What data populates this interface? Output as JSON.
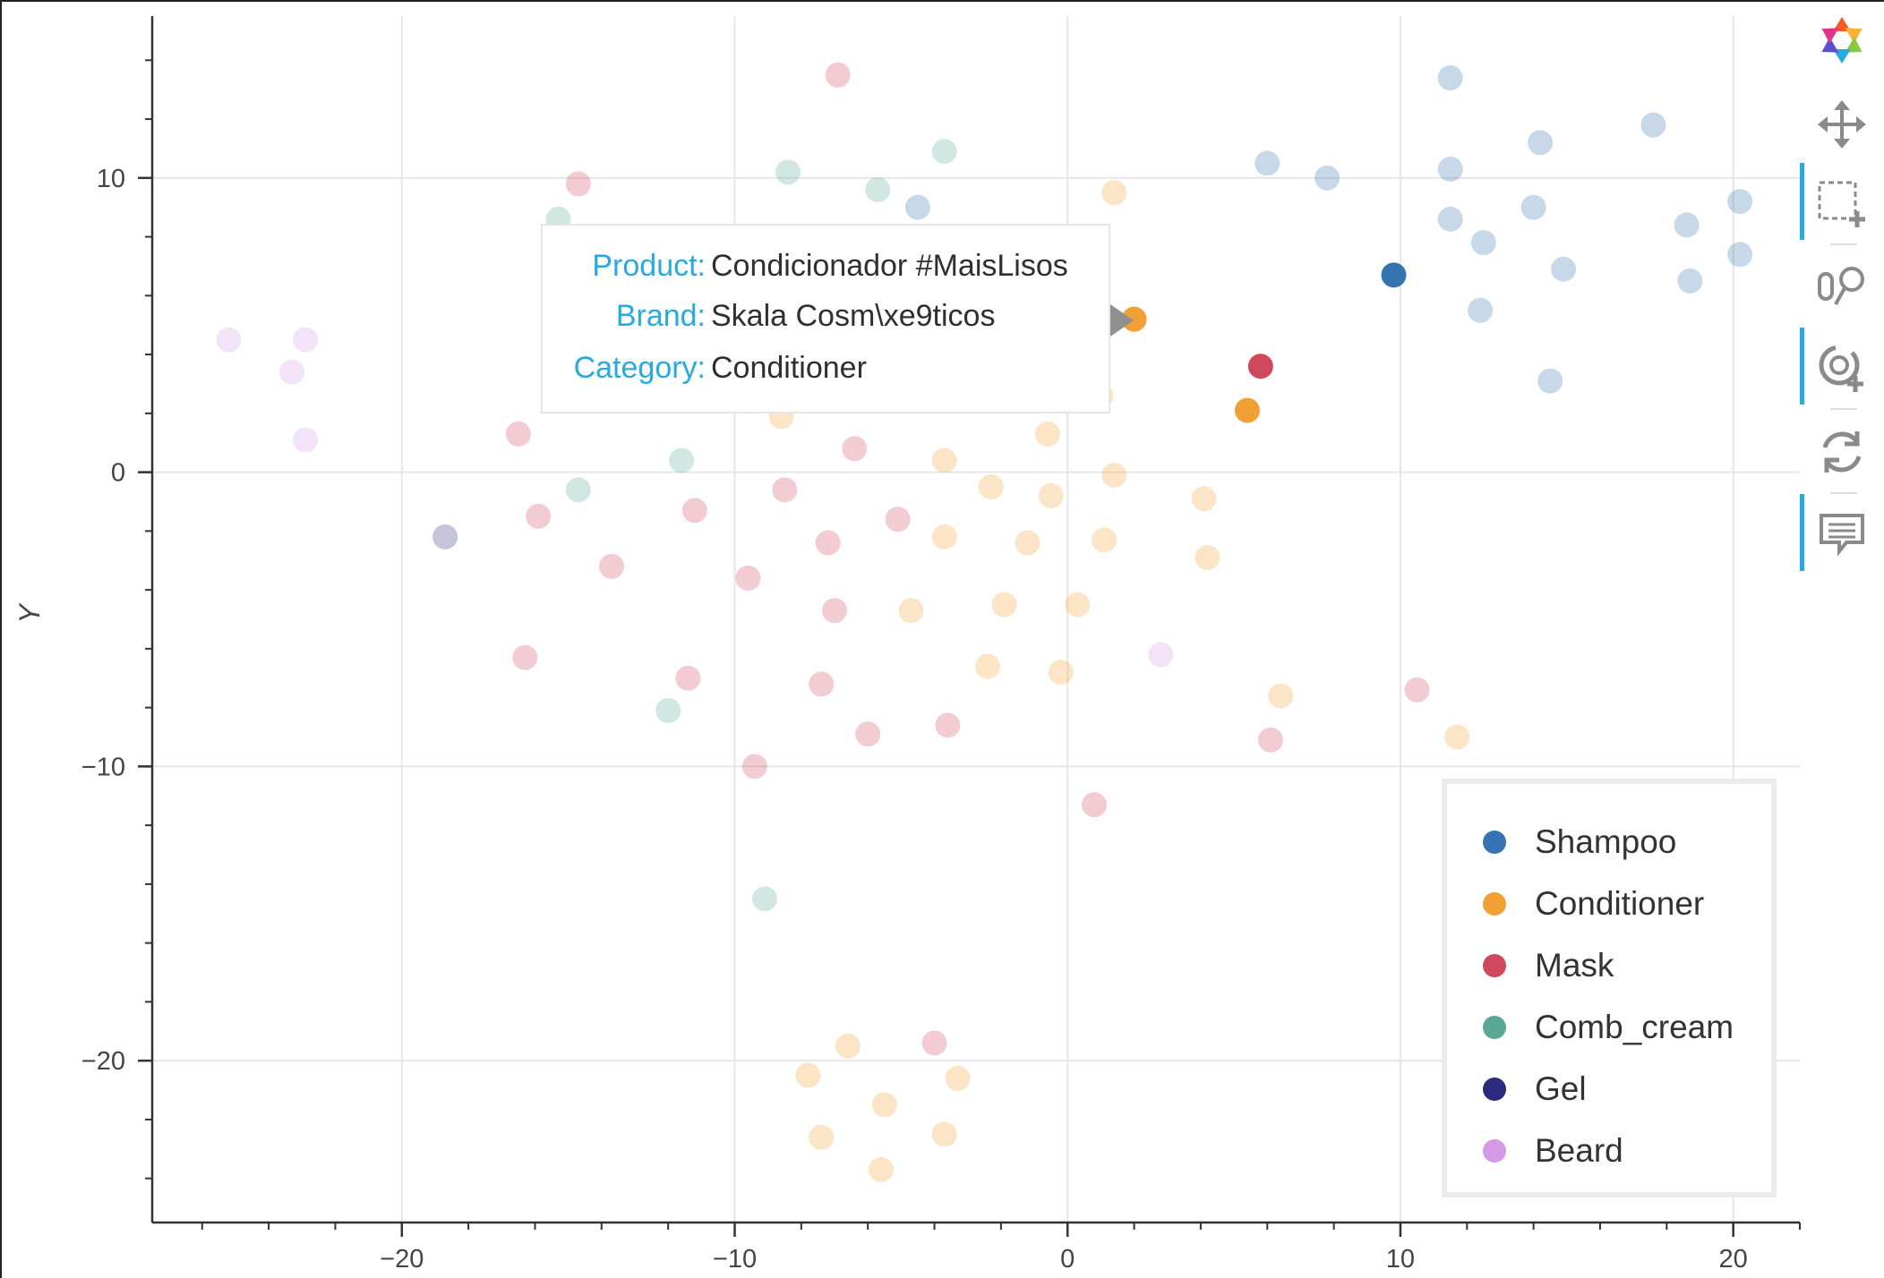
{
  "chart_data": {
    "type": "scatter",
    "title": "",
    "xlabel": "",
    "ylabel": "Y",
    "xlim": [
      -27.5,
      22
    ],
    "ylim": [
      -25.5,
      15.5
    ],
    "x_ticks": [
      -20,
      -10,
      0,
      10,
      20
    ],
    "x_tick_labels": [
      "−20",
      "−10",
      "0",
      "10",
      "20"
    ],
    "y_ticks": [
      -20,
      -10,
      0,
      10
    ],
    "y_tick_labels": [
      "−20",
      "−10",
      "0",
      "10"
    ],
    "grid": true,
    "legend_position": "bottom-right",
    "series": [
      {
        "name": "Shampoo",
        "color": "#3574b0",
        "points": [
          [
            -4.5,
            9
          ],
          [
            -3.5,
            3.8
          ],
          [
            11.5,
            13.4
          ],
          [
            14.2,
            11.2
          ],
          [
            17.6,
            11.8
          ],
          [
            6.0,
            10.5
          ],
          [
            7.8,
            10.0
          ],
          [
            11.5,
            10.3
          ],
          [
            11.5,
            8.6
          ],
          [
            12.5,
            7.8
          ],
          [
            14.0,
            9.0
          ],
          [
            14.9,
            6.9
          ],
          [
            18.6,
            8.4
          ],
          [
            20.2,
            9.2
          ],
          [
            18.7,
            6.5
          ],
          [
            20.2,
            7.4
          ],
          [
            12.4,
            5.5
          ],
          [
            14.5,
            3.1
          ],
          [
            9.8,
            6.7
          ]
        ]
      },
      {
        "name": "Conditioner",
        "color": "#f0a034",
        "points": [
          [
            1.4,
            9.5
          ],
          [
            2.0,
            5.2
          ],
          [
            -0.2,
            5.3
          ],
          [
            -2.6,
            2.6
          ],
          [
            1.0,
            2.6
          ],
          [
            -1.2,
            3.3
          ],
          [
            -8.6,
            1.9
          ],
          [
            -0.6,
            1.3
          ],
          [
            -3.7,
            0.4
          ],
          [
            1.4,
            -0.1
          ],
          [
            -2.3,
            -0.5
          ],
          [
            -0.5,
            -0.8
          ],
          [
            4.1,
            -0.9
          ],
          [
            -3.7,
            -2.2
          ],
          [
            -1.2,
            -2.4
          ],
          [
            1.1,
            -2.3
          ],
          [
            4.2,
            -2.9
          ],
          [
            -4.7,
            -4.7
          ],
          [
            -1.9,
            -4.5
          ],
          [
            0.3,
            -4.5
          ],
          [
            -2.4,
            -6.6
          ],
          [
            -0.2,
            -6.8
          ],
          [
            6.4,
            -7.6
          ],
          [
            11.7,
            -9.0
          ],
          [
            -6.6,
            -19.5
          ],
          [
            -7.8,
            -20.5
          ],
          [
            -3.3,
            -20.6
          ],
          [
            -5.5,
            -21.5
          ],
          [
            -7.4,
            -22.6
          ],
          [
            -3.7,
            -22.5
          ],
          [
            -5.6,
            -23.7
          ],
          [
            5.4,
            2.1
          ]
        ]
      },
      {
        "name": "Mask",
        "color": "#d0485e",
        "points": [
          [
            -6.9,
            13.5
          ],
          [
            -14.7,
            9.8
          ],
          [
            -16.5,
            1.3
          ],
          [
            -6.4,
            0.8
          ],
          [
            -8.5,
            -0.6
          ],
          [
            -15.9,
            -1.5
          ],
          [
            -11.2,
            -1.3
          ],
          [
            -5.1,
            -1.6
          ],
          [
            -7.2,
            -2.4
          ],
          [
            -13.7,
            -3.2
          ],
          [
            -9.6,
            -3.6
          ],
          [
            -7.0,
            -4.7
          ],
          [
            -16.3,
            -6.3
          ],
          [
            -11.4,
            -7.0
          ],
          [
            -7.4,
            -7.2
          ],
          [
            -6.0,
            -8.9
          ],
          [
            -3.6,
            -8.6
          ],
          [
            -9.4,
            -10.0
          ],
          [
            0.8,
            -11.3
          ],
          [
            6.1,
            -9.1
          ],
          [
            10.5,
            -7.4
          ],
          [
            -4.0,
            -19.4
          ],
          [
            5.8,
            3.6
          ]
        ]
      },
      {
        "name": "Comb_cream",
        "color": "#5aa894",
        "points": [
          [
            -15.3,
            8.6
          ],
          [
            -8.4,
            10.2
          ],
          [
            -5.7,
            9.6
          ],
          [
            -3.7,
            10.9
          ],
          [
            -11.6,
            0.4
          ],
          [
            -14.7,
            -0.6
          ],
          [
            -12.0,
            -8.1
          ],
          [
            -9.1,
            -14.5
          ]
        ]
      },
      {
        "name": "Gel",
        "color": "#2d2a7e",
        "points": [
          [
            -18.7,
            -2.2
          ]
        ]
      },
      {
        "name": "Beard",
        "color": "#d49ae6",
        "points": [
          [
            -25.2,
            4.5
          ],
          [
            -22.9,
            4.5
          ],
          [
            -23.3,
            3.4
          ],
          [
            -22.9,
            1.1
          ],
          [
            2.8,
            -6.2
          ]
        ]
      }
    ],
    "highlighted_points": [
      {
        "series": "Shampoo",
        "x": 9.8,
        "y": 6.7
      },
      {
        "series": "Conditioner",
        "x": 2.0,
        "y": 5.2
      },
      {
        "series": "Conditioner",
        "x": 5.4,
        "y": 2.1
      },
      {
        "series": "Mask",
        "x": 5.8,
        "y": 3.6
      }
    ]
  },
  "tooltip": {
    "rows": [
      {
        "key": "Product:",
        "value": "Condicionador #MaisLisos"
      },
      {
        "key": "Brand:",
        "value": "Skala Cosm\\xe9ticos"
      },
      {
        "key": "Category:",
        "value": "Conditioner"
      }
    ]
  },
  "legend": {
    "items": [
      {
        "label": "Shampoo",
        "color": "#3574b0"
      },
      {
        "label": "Conditioner",
        "color": "#f0a034"
      },
      {
        "label": "Mask",
        "color": "#d0485e"
      },
      {
        "label": "Comb_cream",
        "color": "#5aa894"
      },
      {
        "label": "Gel",
        "color": "#2d2a7e"
      },
      {
        "label": "Beard",
        "color": "#d49ae6"
      }
    ]
  },
  "toolbar": {
    "tools": [
      {
        "name": "bokeh-logo-icon",
        "active": false
      },
      {
        "name": "pan-icon",
        "active": false
      },
      {
        "name": "box-zoom-icon",
        "active": true
      },
      {
        "name": "wheel-zoom-icon",
        "active": false
      },
      {
        "name": "zoom-in-icon",
        "active": true
      },
      {
        "name": "reset-icon",
        "active": false
      },
      {
        "name": "hover-icon",
        "active": true
      }
    ]
  }
}
